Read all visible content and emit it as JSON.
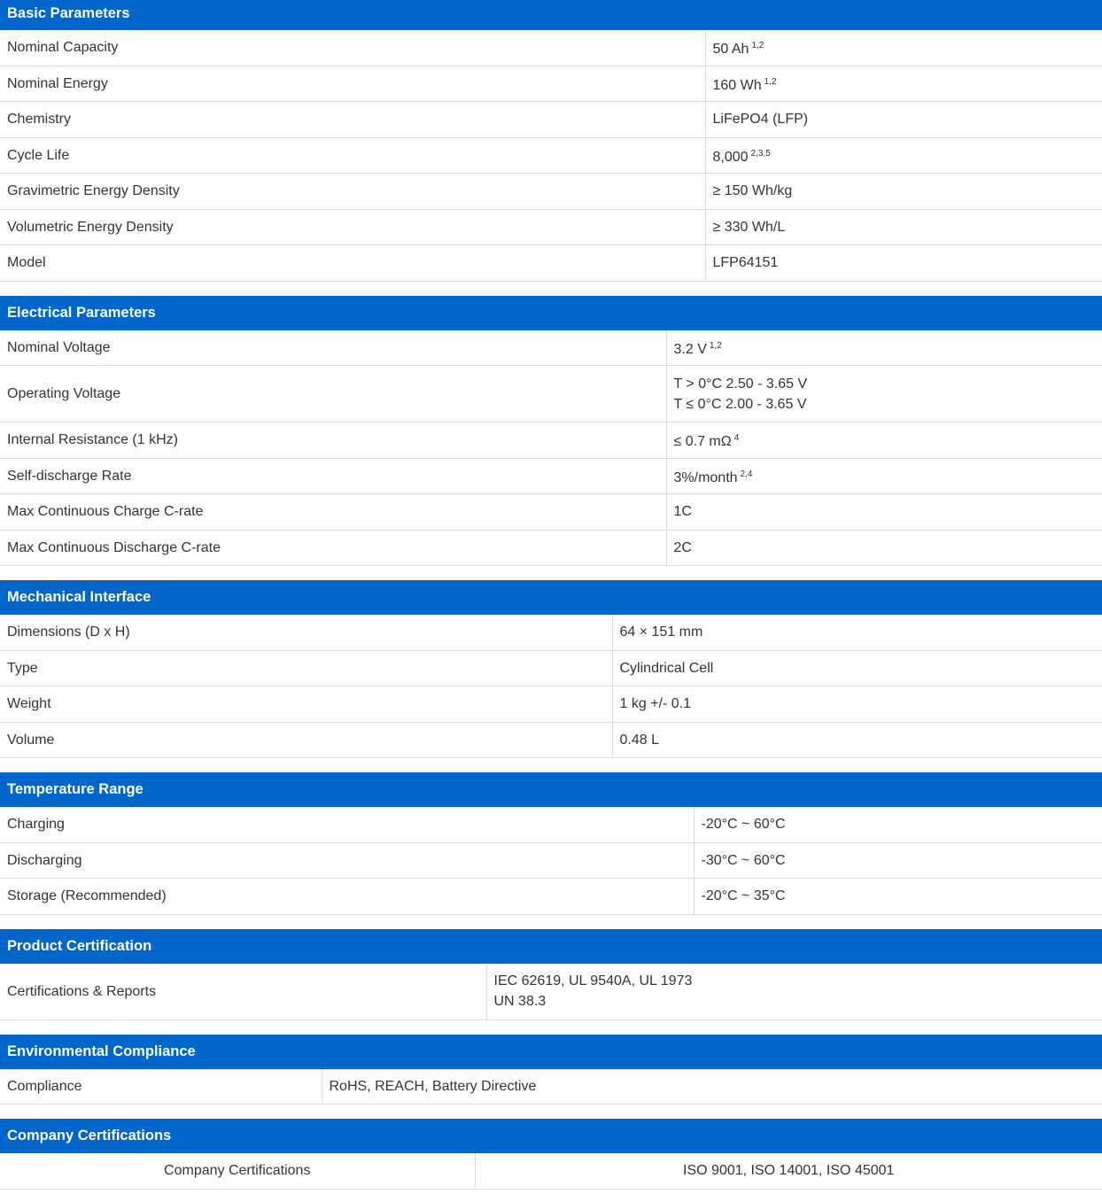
{
  "colors": {
    "header_bg": "#0066cc",
    "header_text": "#ffffff",
    "border": "#dddddd"
  },
  "sections": [
    {
      "title": "Basic Parameters",
      "rows": [
        {
          "label": "Nominal Capacity",
          "value": [
            "50 Ah"
          ],
          "sup": "1,2"
        },
        {
          "label": "Nominal Energy",
          "value": [
            "160 Wh"
          ],
          "sup": "1,2"
        },
        {
          "label": "Chemistry",
          "value": [
            "LiFePO4 (LFP)"
          ]
        },
        {
          "label": "Cycle Life",
          "value": [
            "8,000"
          ],
          "sup": "2,3,5"
        },
        {
          "label": "Gravimetric Energy Density",
          "value": [
            "≥ 150 Wh/kg"
          ]
        },
        {
          "label": "Volumetric Energy Density",
          "value": [
            "≥ 330 Wh/L"
          ]
        },
        {
          "label": "Model",
          "value": [
            "LFP64151"
          ]
        }
      ]
    },
    {
      "title": "Electrical Parameters",
      "rows": [
        {
          "label": "Nominal Voltage",
          "value": [
            "3.2 V"
          ],
          "sup": "1,2"
        },
        {
          "label": "Operating Voltage",
          "value": [
            "T > 0°C 2.50 - 3.65 V",
            "T ≤ 0°C 2.00 - 3.65 V"
          ]
        },
        {
          "label": "Internal Resistance (1 kHz)",
          "value": [
            "≤ 0.7 mΩ"
          ],
          "sup": "4"
        },
        {
          "label": "Self-discharge Rate",
          "value": [
            "3%/month"
          ],
          "sup": "2,4"
        },
        {
          "label": "Max Continuous Charge C-rate",
          "value": [
            "1C"
          ]
        },
        {
          "label": "Max Continuous Discharge C-rate",
          "value": [
            "2C"
          ]
        }
      ]
    },
    {
      "title": "Mechanical Interface",
      "rows": [
        {
          "label": "Dimensions (D x H)",
          "value": [
            "64 × 151 mm"
          ]
        },
        {
          "label": "Type",
          "value": [
            "Cylindrical Cell"
          ]
        },
        {
          "label": "Weight",
          "value": [
            "1 kg +/- 0.1"
          ]
        },
        {
          "label": "Volume",
          "value": [
            "0.48 L"
          ]
        }
      ]
    },
    {
      "title": "Temperature Range",
      "rows": [
        {
          "label": "Charging",
          "value": [
            "-20°C ~ 60°C"
          ]
        },
        {
          "label": "Discharging",
          "value": [
            "-30°C ~ 60°C"
          ]
        },
        {
          "label": "Storage (Recommended)",
          "value": [
            "-20°C ~ 35°C"
          ]
        }
      ]
    },
    {
      "title": "Product Certification",
      "rows": [
        {
          "label": "Certifications & Reports",
          "value": [
            "IEC 62619, UL 9540A, UL 1973",
            "UN 38.3"
          ]
        }
      ]
    },
    {
      "title": "Environmental Compliance",
      "rows": [
        {
          "label": "Compliance",
          "value": [
            "RoHS, REACH, Battery Directive"
          ]
        }
      ]
    },
    {
      "title": "Company Certifications",
      "rows": [
        {
          "label": "Company Certifications",
          "value": [
            "ISO 9001, ISO 14001, ISO 45001"
          ]
        }
      ]
    }
  ]
}
